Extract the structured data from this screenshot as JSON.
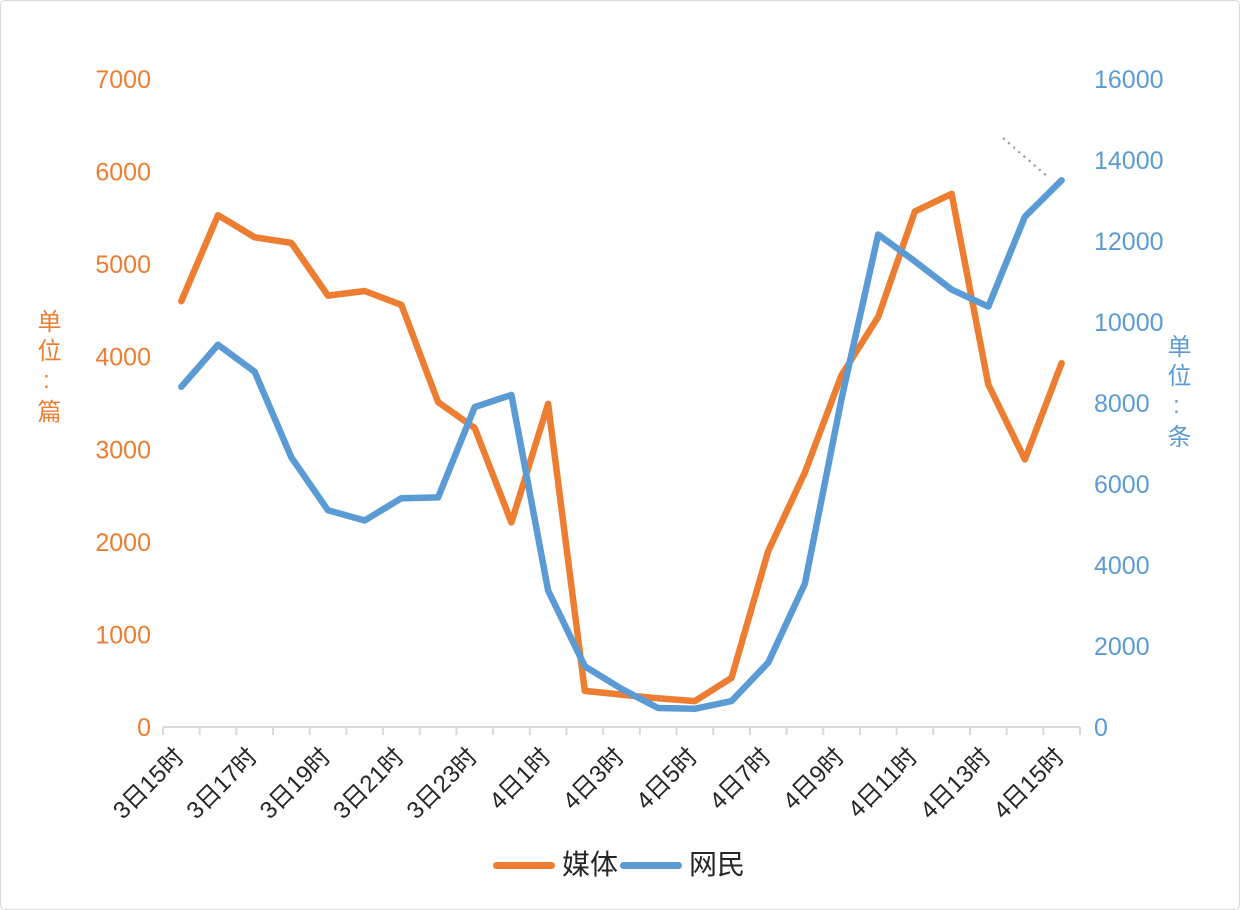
{
  "chart_data": {
    "type": "line",
    "title": "",
    "grid": false,
    "categories": [
      "3日15时",
      "3日16时",
      "3日17时",
      "3日18时",
      "3日19时",
      "3日20时",
      "3日21时",
      "3日22时",
      "3日23时",
      "4日0时",
      "4日1时",
      "4日2时",
      "4日3时",
      "4日4时",
      "4日5时",
      "4日6时",
      "4日7时",
      "4日8时",
      "4日9时",
      "4日10时",
      "4日11时",
      "4日12时",
      "4日13时",
      "4日14时",
      "4日15时"
    ],
    "x_axis": {
      "visible_labels": [
        "3日15时",
        "3日17时",
        "3日19时",
        "3日21时",
        "3日23时",
        "4日1时",
        "4日3时",
        "4日5时",
        "4日7时",
        "4日9时",
        "4日11时",
        "4日13时",
        "4日15时"
      ],
      "label_color": "#262626"
    },
    "left_axis": {
      "title": "单位:篇",
      "unit": "篇",
      "min": 0,
      "max": 7000,
      "step": 1000,
      "tick_labels": [
        "0",
        "1000",
        "2000",
        "3000",
        "4000",
        "5000",
        "6000",
        "7000"
      ],
      "color": "#ED7D31"
    },
    "right_axis": {
      "title": "单位:条",
      "unit": "条",
      "min": 0,
      "max": 16000,
      "step": 2000,
      "tick_labels": [
        "0",
        "2000",
        "4000",
        "6000",
        "8000",
        "10000",
        "12000",
        "14000",
        "16000"
      ],
      "color": "#5B9BD5"
    },
    "series": [
      {
        "name": "媒体",
        "axis": "left",
        "color": "#ED7D31",
        "values": [
          4600,
          5530,
          5290,
          5230,
          4660,
          4710,
          4560,
          3510,
          3230,
          2210,
          3490,
          390,
          350,
          310,
          280,
          530,
          1900,
          2750,
          3800,
          4430,
          5570,
          5760,
          3700,
          2890,
          3930
        ]
      },
      {
        "name": "网民",
        "axis": "right",
        "color": "#5B9BD5",
        "values": [
          8400,
          9440,
          8770,
          6660,
          5350,
          5100,
          5650,
          5670,
          7900,
          8200,
          3370,
          1500,
          940,
          470,
          450,
          640,
          1590,
          3540,
          8100,
          12160,
          11500,
          10800,
          10380,
          12600,
          13500
        ]
      }
    ],
    "legend": {
      "position": "bottom",
      "items": [
        {
          "label": "媒体",
          "color": "#ED7D31"
        },
        {
          "label": "网民",
          "color": "#5B9BD5"
        }
      ]
    },
    "annotations": [
      {
        "type": "dotted-segment",
        "near": "4日14时",
        "color": "#9e9e9e"
      }
    ],
    "axis_line_color": "#d9d9d9"
  }
}
